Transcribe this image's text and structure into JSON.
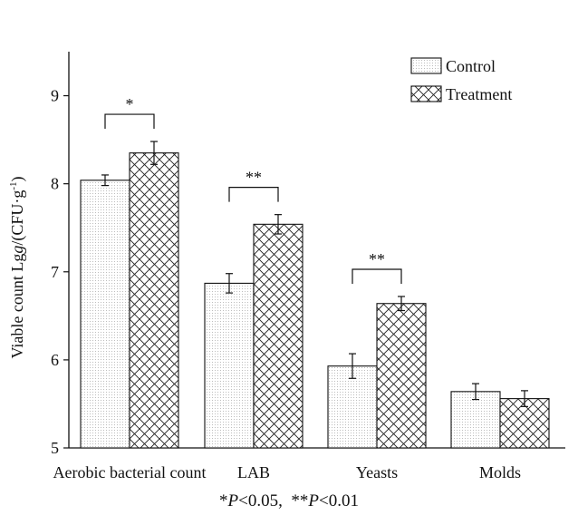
{
  "chart_data": {
    "type": "bar",
    "categories": [
      "Aerobic bacterial count",
      "LAB",
      "Yeasts",
      "Molds"
    ],
    "series": [
      {
        "name": "Control",
        "values": [
          8.04,
          6.87,
          5.93,
          5.64
        ],
        "errors": [
          0.06,
          0.11,
          0.14,
          0.09
        ],
        "pattern": "dots"
      },
      {
        "name": "Treatment",
        "values": [
          8.35,
          7.54,
          6.64,
          5.56
        ],
        "errors": [
          0.13,
          0.11,
          0.08,
          0.09
        ],
        "pattern": "crosshatch"
      }
    ],
    "ylabel_prefix": "Viable count Lg",
    "ylabel_italic": "g",
    "ylabel_suffix": "/(CFU·g",
    "ylabel_sup": "-1",
    "ylabel_close": ")",
    "ylim": [
      5,
      9.5
    ],
    "yticks": [
      5,
      6,
      7,
      8,
      9
    ],
    "legend_position": "top-right",
    "significance": [
      {
        "category": "Aerobic bacterial count",
        "label": "*"
      },
      {
        "category": "LAB",
        "label": "**"
      },
      {
        "category": "Yeasts",
        "label": "**"
      }
    ],
    "footnote": {
      "part1": "*",
      "p1": "P",
      "rest1": "<0.05,",
      "part2": "**",
      "p2": "P",
      "rest2": "<0.01"
    }
  }
}
